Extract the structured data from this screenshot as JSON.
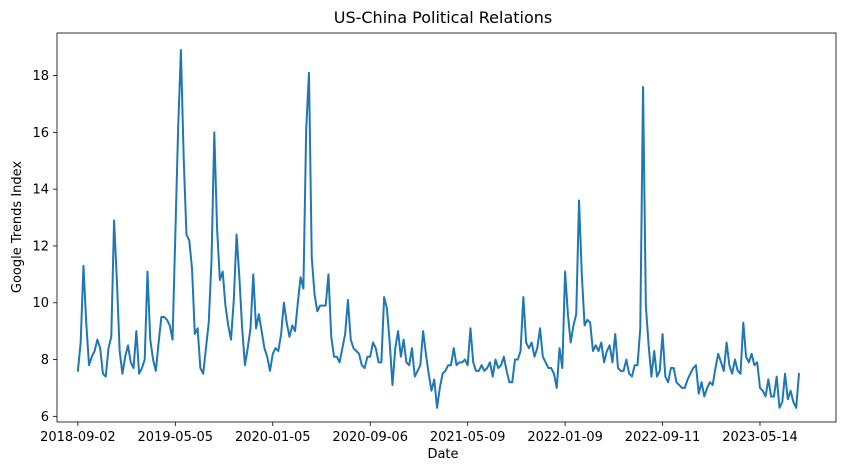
{
  "chart_data": {
    "type": "line",
    "title": "US-China Political Relations",
    "xlabel": "Date",
    "ylabel": "Google Trends Index",
    "x_tick_labels": [
      "2018-09-02",
      "2019-05-05",
      "2020-01-05",
      "2020-09-06",
      "2021-05-09",
      "2022-01-09",
      "2022-09-11",
      "2023-05-14"
    ],
    "x_tick_weeks": [
      0,
      35,
      70,
      105,
      140,
      175,
      210,
      245
    ],
    "y_ticks": [
      6,
      8,
      10,
      12,
      14,
      16,
      18
    ],
    "xlim_weeks": [
      -7.5,
      272.3
    ],
    "ylim": [
      5.8,
      19.5
    ],
    "grid": false,
    "series": [
      {
        "name": "Google Trends Index",
        "color": "#1f77b4",
        "start_date": "2018-09-02",
        "interval": "weekly",
        "values": [
          7.6,
          8.6,
          11.3,
          9.3,
          7.8,
          8.1,
          8.3,
          8.7,
          8.4,
          7.5,
          7.4,
          8.4,
          8.8,
          12.9,
          10.8,
          8.3,
          7.5,
          8.1,
          8.5,
          7.9,
          7.7,
          9.0,
          7.5,
          7.7,
          8.0,
          11.1,
          8.7,
          8.0,
          7.6,
          8.6,
          9.5,
          9.5,
          9.4,
          9.2,
          8.7,
          12.4,
          16.1,
          18.9,
          15.1,
          12.4,
          12.2,
          11.2,
          8.9,
          9.1,
          7.7,
          7.5,
          8.4,
          9.3,
          11.5,
          16.0,
          12.6,
          10.8,
          11.1,
          9.9,
          9.2,
          8.7,
          10.1,
          12.4,
          10.9,
          9.1,
          7.8,
          8.4,
          9.1,
          11.0,
          9.1,
          9.6,
          9.0,
          8.4,
          8.1,
          7.6,
          8.2,
          8.4,
          8.3,
          8.9,
          10.0,
          9.3,
          8.8,
          9.2,
          9.0,
          10.0,
          10.9,
          10.5,
          16.1,
          18.1,
          11.6,
          10.3,
          9.7,
          9.9,
          9.9,
          9.9,
          11.0,
          8.8,
          8.1,
          8.1,
          7.9,
          8.4,
          8.9,
          10.1,
          8.7,
          8.4,
          8.3,
          8.2,
          7.8,
          7.7,
          8.1,
          8.1,
          8.6,
          8.4,
          7.9,
          7.9,
          10.2,
          9.8,
          8.6,
          7.1,
          8.4,
          9.0,
          8.1,
          8.7,
          7.9,
          7.8,
          8.4,
          7.4,
          7.6,
          7.8,
          9.0,
          8.2,
          7.5,
          6.9,
          7.3,
          6.3,
          7.0,
          7.5,
          7.6,
          7.8,
          7.8,
          8.4,
          7.8,
          7.9,
          7.9,
          8.0,
          7.8,
          9.1,
          7.9,
          7.6,
          7.6,
          7.8,
          7.6,
          7.7,
          7.9,
          7.4,
          8.0,
          7.7,
          7.8,
          8.1,
          7.6,
          7.2,
          7.2,
          8.0,
          8.0,
          8.3,
          10.2,
          8.6,
          8.4,
          8.6,
          8.1,
          8.4,
          9.1,
          8.1,
          7.9,
          7.7,
          7.7,
          7.5,
          7.0,
          8.4,
          7.7,
          11.1,
          9.6,
          8.6,
          9.2,
          9.6,
          13.6,
          11.0,
          9.2,
          9.4,
          9.3,
          8.3,
          8.5,
          8.3,
          8.6,
          7.9,
          8.3,
          8.5,
          7.9,
          8.9,
          7.7,
          7.6,
          7.6,
          8.0,
          7.5,
          7.4,
          7.8,
          7.8,
          9.1,
          17.6,
          9.9,
          8.5,
          7.4,
          8.3,
          7.4,
          7.6,
          8.9,
          7.4,
          7.2,
          7.7,
          7.7,
          7.2,
          7.1,
          7.0,
          7.0,
          7.3,
          7.5,
          7.7,
          7.8,
          6.8,
          7.2,
          6.7,
          7.0,
          7.2,
          7.1,
          7.7,
          8.2,
          7.9,
          7.6,
          8.6,
          7.8,
          7.5,
          8.0,
          7.6,
          7.5,
          9.3,
          8.1,
          7.9,
          8.2,
          7.8,
          7.9,
          7.0,
          6.9,
          6.7,
          7.3,
          6.7,
          6.7,
          7.4,
          6.3,
          6.5,
          7.5,
          6.6,
          6.9,
          6.5,
          6.3,
          7.5
        ]
      }
    ]
  }
}
